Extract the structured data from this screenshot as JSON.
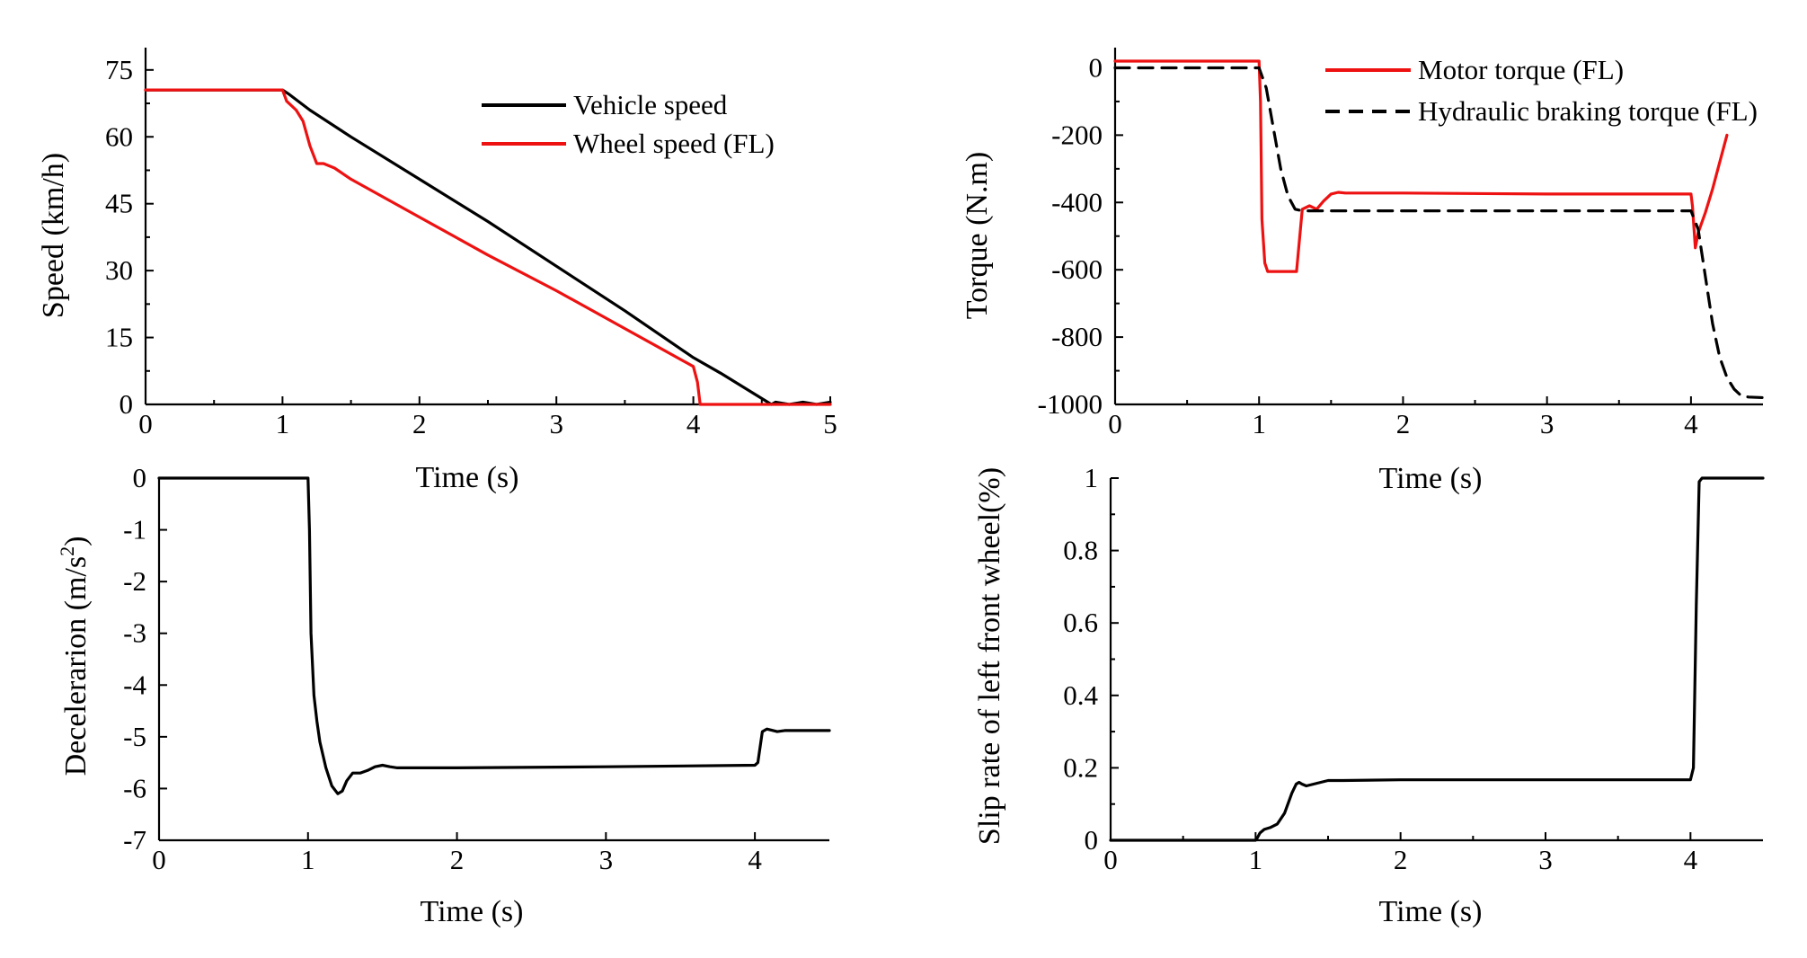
{
  "colors": {
    "red": "#ee1111",
    "black": "#000000"
  },
  "chart_data": [
    {
      "type": "line",
      "id": "speed",
      "xlabel": "Time (s)",
      "ylabel": "Speed (km/h)",
      "xlim": [
        0,
        5
      ],
      "ylim": [
        0,
        80
      ],
      "xticks": [
        0,
        1,
        2,
        3,
        4,
        5
      ],
      "xtick_labels": [
        "0",
        "1",
        "2",
        "3",
        "4",
        "5"
      ],
      "yticks": [
        0,
        15,
        30,
        45,
        60,
        75
      ],
      "ytick_labels": [
        "0",
        "15",
        "30",
        "45",
        "60",
        "75"
      ],
      "legend": "top-right",
      "series": [
        {
          "name": "Vehicle speed",
          "color": "#000000",
          "style": "solid",
          "x": [
            0,
            1.0,
            1.05,
            1.2,
            1.5,
            2.0,
            2.5,
            3.0,
            3.5,
            4.0,
            4.2,
            4.57,
            4.6,
            4.7,
            4.8,
            4.9,
            5.0
          ],
          "y": [
            70.5,
            70.5,
            69.5,
            66.0,
            60.0,
            50.5,
            41.0,
            31.0,
            21.0,
            10.5,
            7.0,
            0,
            0.5,
            0,
            0.5,
            0,
            0.5
          ]
        },
        {
          "name": "Wheel speed (FL)",
          "color": "#ee1111",
          "style": "solid",
          "x": [
            0,
            1.0,
            1.03,
            1.1,
            1.15,
            1.2,
            1.25,
            1.3,
            1.38,
            1.5,
            2.0,
            2.5,
            3.0,
            3.5,
            4.0,
            4.03,
            4.05,
            4.1,
            4.6,
            5.0
          ],
          "y": [
            70.5,
            70.5,
            68.0,
            66.0,
            63.5,
            58.0,
            54.0,
            54.0,
            53.0,
            50.5,
            42.0,
            33.5,
            25.5,
            17.0,
            8.5,
            5.0,
            0,
            0,
            0,
            0
          ]
        }
      ]
    },
    {
      "type": "line",
      "id": "torque",
      "xlabel": "Time (s)",
      "ylabel": "Torque (N.m)",
      "xlim": [
        0,
        4.5
      ],
      "ylim": [
        -1000,
        60
      ],
      "xticks": [
        0,
        1,
        2,
        3,
        4
      ],
      "xtick_labels": [
        "0",
        "1",
        "2",
        "3",
        "4"
      ],
      "yticks": [
        0,
        -200,
        -400,
        -600,
        -800,
        -1000
      ],
      "ytick_labels": [
        "0",
        "-200",
        "-400",
        "-600",
        "-800",
        "-1000"
      ],
      "legend": "top-right",
      "series": [
        {
          "name": "Motor torque (FL)",
          "color": "#ee1111",
          "style": "solid",
          "x": [
            0,
            1.0,
            1.01,
            1.02,
            1.04,
            1.06,
            1.1,
            1.2,
            1.26,
            1.3,
            1.35,
            1.4,
            1.45,
            1.5,
            1.55,
            1.6,
            1.7,
            2.0,
            3.0,
            4.0,
            4.01,
            4.03,
            4.05,
            4.1,
            4.15,
            4.2,
            4.25
          ],
          "y": [
            20,
            20,
            -100,
            -450,
            -580,
            -605,
            -605,
            -605,
            -605,
            -420,
            -410,
            -420,
            -395,
            -375,
            -370,
            -372,
            -372,
            -372,
            -375,
            -375,
            -410,
            -535,
            -490,
            -430,
            -360,
            -280,
            -200
          ]
        },
        {
          "name": "Hydraulic braking torque (FL)",
          "color": "#000000",
          "style": "dashed",
          "x": [
            0,
            1.0,
            1.05,
            1.1,
            1.15,
            1.2,
            1.25,
            1.3,
            2.0,
            3.0,
            4.0,
            4.05,
            4.1,
            4.15,
            4.2,
            4.25,
            4.3,
            4.35,
            4.4,
            4.5
          ],
          "y": [
            0,
            0,
            -60,
            -180,
            -300,
            -380,
            -420,
            -425,
            -425,
            -425,
            -425,
            -480,
            -620,
            -760,
            -860,
            -920,
            -955,
            -975,
            -978,
            -980
          ]
        }
      ]
    },
    {
      "type": "line",
      "id": "deceleration",
      "xlabel": "Time (s)",
      "ylabel": "Decelerarion (m/s",
      "ylabel_sup": "2",
      "ylabel_end": ")",
      "xlim": [
        0,
        4.5
      ],
      "ylim": [
        -7,
        0
      ],
      "xticks": [
        0,
        1,
        2,
        3,
        4
      ],
      "xtick_labels": [
        "0",
        "1",
        "2",
        "3",
        "4"
      ],
      "yticks": [
        0,
        -1,
        -2,
        -3,
        -4,
        -5,
        -6,
        -7
      ],
      "ytick_labels": [
        "0",
        "-1",
        "-2",
        "-3",
        "-4",
        "-5",
        "-6",
        "-7"
      ],
      "series": [
        {
          "name": "Deceleration",
          "color": "#000000",
          "style": "solid",
          "x": [
            0,
            1.0,
            1.01,
            1.02,
            1.04,
            1.06,
            1.08,
            1.12,
            1.16,
            1.2,
            1.23,
            1.26,
            1.3,
            1.35,
            1.4,
            1.45,
            1.5,
            1.55,
            1.6,
            1.65,
            1.7,
            2.0,
            3.0,
            4.0,
            4.02,
            4.05,
            4.08,
            4.15,
            4.2,
            4.3,
            4.5
          ],
          "y": [
            0,
            0,
            -1.0,
            -3.0,
            -4.2,
            -4.7,
            -5.1,
            -5.6,
            -5.95,
            -6.1,
            -6.05,
            -5.85,
            -5.7,
            -5.7,
            -5.65,
            -5.58,
            -5.55,
            -5.58,
            -5.6,
            -5.6,
            -5.6,
            -5.6,
            -5.58,
            -5.55,
            -5.5,
            -4.9,
            -4.85,
            -4.9,
            -4.88,
            -4.88,
            -4.88
          ]
        }
      ]
    },
    {
      "type": "line",
      "id": "slip",
      "xlabel": "Time (s)",
      "ylabel": "Slip rate of left front wheel(%)",
      "xlim": [
        0,
        4.5
      ],
      "ylim": [
        0,
        1
      ],
      "xticks": [
        0,
        1,
        2,
        3,
        4
      ],
      "xtick_labels": [
        "0",
        "1",
        "2",
        "3",
        "4"
      ],
      "yticks": [
        0,
        0.2,
        0.4,
        0.6,
        0.8,
        1
      ],
      "ytick_labels": [
        "0",
        "0.2",
        "0.4",
        "0.6",
        "0.8",
        "1"
      ],
      "series": [
        {
          "name": "Slip rate",
          "color": "#000000",
          "style": "solid",
          "x": [
            0,
            1.0,
            1.01,
            1.03,
            1.06,
            1.1,
            1.15,
            1.2,
            1.25,
            1.28,
            1.3,
            1.32,
            1.35,
            1.4,
            1.45,
            1.5,
            1.6,
            2.0,
            3.0,
            4.0,
            4.02,
            4.04,
            4.06,
            4.08,
            4.2,
            4.5
          ],
          "y": [
            0,
            0,
            0.005,
            0.02,
            0.03,
            0.035,
            0.045,
            0.075,
            0.13,
            0.155,
            0.16,
            0.155,
            0.15,
            0.155,
            0.16,
            0.165,
            0.165,
            0.167,
            0.167,
            0.167,
            0.2,
            0.65,
            0.99,
            1.0,
            1.0,
            1.0
          ]
        }
      ]
    }
  ]
}
